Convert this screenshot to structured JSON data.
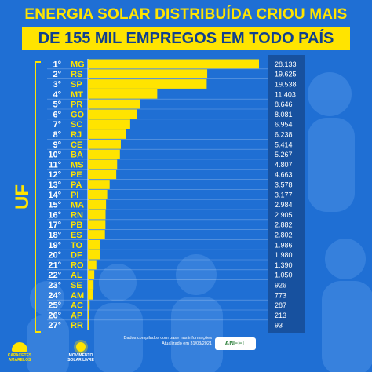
{
  "header": {
    "title_line1": "ENERGIA SOLAR DISTRIBUÍDA CRIOU MAIS",
    "title_line2": "DE 155 MIL EMPREGOS EM TODO PAÍS"
  },
  "colors": {
    "background": "#1f6fd4",
    "accent_yellow": "#ffe400",
    "dark_blue": "#0f3f8e",
    "value_panel": "#17519f"
  },
  "chart_data": {
    "type": "bar",
    "orientation": "horizontal",
    "ylabel": "UF",
    "ranks": [
      "1°",
      "2°",
      "3°",
      "4°",
      "5°",
      "6°",
      "7°",
      "8°",
      "9°",
      "10°",
      "11°",
      "12°",
      "13°",
      "14°",
      "15°",
      "16°",
      "17°",
      "18°",
      "19°",
      "20°",
      "21°",
      "22°",
      "23°",
      "24°",
      "25°",
      "26°",
      "27°"
    ],
    "categories": [
      "MG",
      "RS",
      "SP",
      "MT",
      "PR",
      "GO",
      "SC",
      "RJ",
      "CE",
      "BA",
      "MS",
      "PE",
      "PA",
      "PI",
      "MA",
      "RN",
      "PB",
      "ES",
      "TO",
      "DF",
      "RO",
      "AL",
      "SE",
      "AM",
      "AC",
      "AP",
      "RR"
    ],
    "values": [
      28133,
      19625,
      19538,
      11403,
      8646,
      8081,
      6954,
      6238,
      5414,
      5267,
      4807,
      4663,
      3578,
      3177,
      2984,
      2905,
      2882,
      2802,
      1986,
      1980,
      1390,
      1050,
      926,
      773,
      287,
      213,
      93
    ],
    "value_labels": [
      "28.133",
      "19.625",
      "19.538",
      "11.403",
      "8.646",
      "8.081",
      "6.954",
      "6.238",
      "5.414",
      "5.267",
      "4.807",
      "4.663",
      "3.578",
      "3.177",
      "2.984",
      "2.905",
      "2.882",
      "2.802",
      "1.986",
      "1.980",
      "1.390",
      "1.050",
      "926",
      "773",
      "287",
      "213",
      "93"
    ],
    "bar_color": "#ffe400"
  },
  "footer": {
    "note_line1": "Dados compilados com base nas informações",
    "note_line2": "Atualizado em 31/03/2021",
    "source_logo": "ANEEL",
    "logo_left": "CAPACETES AMARELOS",
    "logo_right": "MOVIMENTO SOLAR LIVRE"
  }
}
